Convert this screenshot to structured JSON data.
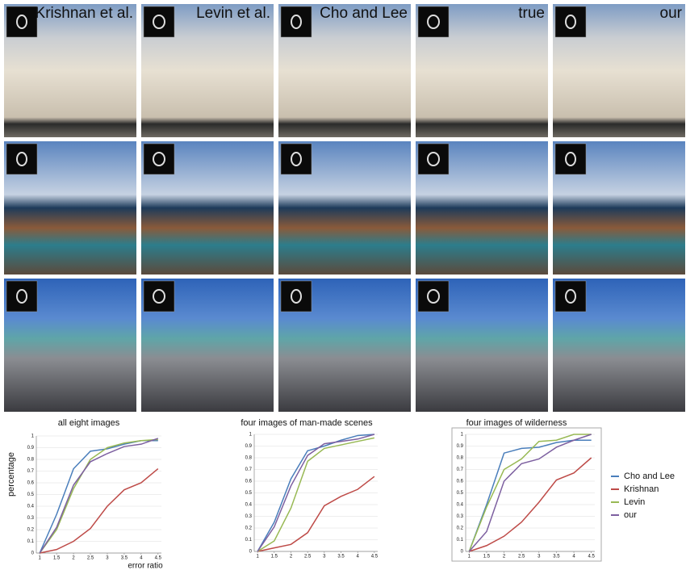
{
  "figure": {
    "column_labels": [
      "Krishnan et al.",
      "Levin et al.",
      "Cho and Lee",
      "true",
      "our"
    ]
  },
  "chart_data": [
    {
      "type": "line",
      "title": "all eight images",
      "xlabel": "error ratio",
      "ylabel": "percentage",
      "x": [
        1,
        1.5,
        2,
        2.5,
        3,
        3.5,
        4,
        4.5
      ],
      "xlim": [
        0.9,
        4.6
      ],
      "xticks": [
        1,
        1.5,
        2,
        2.5,
        3,
        3.5,
        4,
        4.5
      ],
      "ylim": [
        0,
        1
      ],
      "yticks": [
        0,
        0.1,
        0.2,
        0.3,
        0.4,
        0.5,
        0.6,
        0.7,
        0.8,
        0.9,
        1
      ],
      "grid": true,
      "series": [
        {
          "name": "Cho and Lee",
          "color": "#4a7ebb",
          "values": [
            0,
            0.33,
            0.72,
            0.87,
            0.89,
            0.93,
            0.96,
            0.96
          ]
        },
        {
          "name": "Krishnan",
          "color": "#be4b48",
          "values": [
            0,
            0.03,
            0.1,
            0.21,
            0.4,
            0.54,
            0.6,
            0.72
          ]
        },
        {
          "name": "Levin",
          "color": "#98b954",
          "values": [
            0,
            0.2,
            0.55,
            0.8,
            0.9,
            0.94,
            0.96,
            0.97
          ]
        },
        {
          "name": "our",
          "color": "#7d60a0",
          "values": [
            0,
            0.22,
            0.58,
            0.78,
            0.85,
            0.91,
            0.93,
            0.98
          ]
        }
      ]
    },
    {
      "type": "line",
      "title": "four images of man-made scenes",
      "x": [
        1,
        1.5,
        2,
        2.5,
        3,
        3.5,
        4,
        4.5
      ],
      "xlim": [
        0.9,
        4.6
      ],
      "xticks": [
        1,
        1.5,
        2,
        2.5,
        3,
        3.5,
        4,
        4.5
      ],
      "ylim": [
        0,
        1
      ],
      "yticks": [
        0,
        0.1,
        0.2,
        0.3,
        0.4,
        0.5,
        0.6,
        0.7,
        0.8,
        0.9,
        1
      ],
      "grid": true,
      "series": [
        {
          "name": "Cho and Lee",
          "color": "#4a7ebb",
          "values": [
            0,
            0.25,
            0.62,
            0.86,
            0.9,
            0.95,
            0.99,
            1
          ]
        },
        {
          "name": "Krishnan",
          "color": "#be4b48",
          "values": [
            0,
            0.03,
            0.06,
            0.16,
            0.39,
            0.47,
            0.53,
            0.64
          ]
        },
        {
          "name": "Levin",
          "color": "#98b954",
          "values": [
            0,
            0.09,
            0.37,
            0.77,
            0.88,
            0.91,
            0.94,
            0.97
          ]
        },
        {
          "name": "our",
          "color": "#7d60a0",
          "values": [
            0,
            0.21,
            0.56,
            0.82,
            0.92,
            0.94,
            0.96,
            1
          ]
        }
      ]
    },
    {
      "type": "line",
      "title": "four images of wilderness",
      "x": [
        1,
        1.5,
        2,
        2.5,
        3,
        3.5,
        4,
        4.5
      ],
      "xlim": [
        0.9,
        4.6
      ],
      "xticks": [
        1,
        1.5,
        2,
        2.5,
        3,
        3.5,
        4,
        4.5
      ],
      "ylim": [
        0,
        1
      ],
      "yticks": [
        0,
        0.1,
        0.2,
        0.3,
        0.4,
        0.5,
        0.6,
        0.7,
        0.8,
        0.9,
        1
      ],
      "grid": true,
      "series": [
        {
          "name": "Cho and Lee",
          "color": "#4a7ebb",
          "values": [
            0,
            0.4,
            0.84,
            0.88,
            0.89,
            0.93,
            0.95,
            0.95
          ]
        },
        {
          "name": "Krishnan",
          "color": "#be4b48",
          "values": [
            0,
            0.05,
            0.13,
            0.25,
            0.42,
            0.61,
            0.67,
            0.8
          ]
        },
        {
          "name": "Levin",
          "color": "#98b954",
          "values": [
            0,
            0.38,
            0.7,
            0.79,
            0.94,
            0.95,
            1,
            1
          ]
        },
        {
          "name": "our",
          "color": "#7d60a0",
          "values": [
            0,
            0.17,
            0.6,
            0.75,
            0.79,
            0.89,
            0.95,
            1
          ]
        }
      ]
    }
  ]
}
